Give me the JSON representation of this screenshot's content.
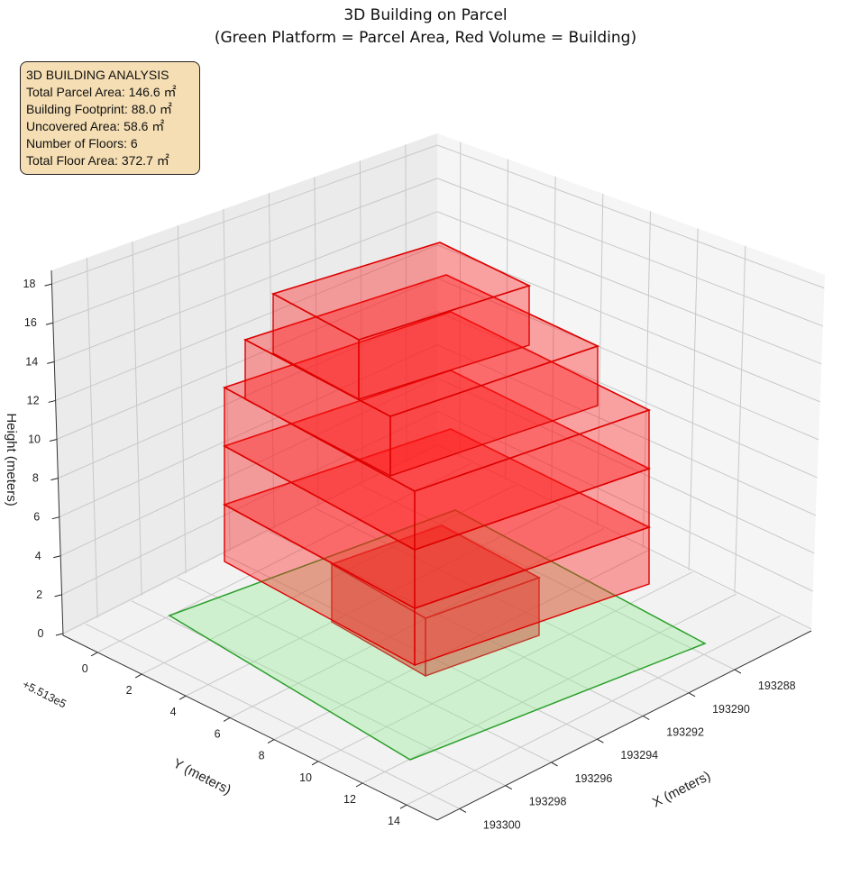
{
  "chart_data": {
    "type": "3d-bar",
    "title": "3D Building on Parcel",
    "subtitle": "(Green Platform = Parcel Area, Red Volume = Building)",
    "xlabel": "X (meters)",
    "ylabel": "Y (meters)",
    "zlabel": "Height (meters)",
    "y_offset_label": "+5.513e5",
    "x_ticks": [
      "193288",
      "193290",
      "193292",
      "193294",
      "193296",
      "193298",
      "193300"
    ],
    "y_ticks": [
      "0",
      "2",
      "4",
      "6",
      "8",
      "10",
      "12",
      "14"
    ],
    "z_ticks": [
      "0",
      "2",
      "4",
      "6",
      "8",
      "10",
      "12",
      "14",
      "16",
      "18"
    ],
    "zlim": [
      0,
      18
    ],
    "series": [
      {
        "name": "Parcel platform",
        "color": "#2ca02c",
        "fill": "#90ee90"
      },
      {
        "name": "Building volume",
        "color": "#dd0000",
        "fill": "#ff0000"
      }
    ],
    "grid": true
  },
  "info": {
    "heading": "3D BUILDING ANALYSIS",
    "lines": [
      "Total Parcel Area: 146.6 ㎡",
      "Building Footprint: 88.0 ㎡",
      "Uncovered Area: 58.6 ㎡",
      "Number of Floors: 6",
      "Total Floor Area: 372.7 ㎡"
    ]
  }
}
